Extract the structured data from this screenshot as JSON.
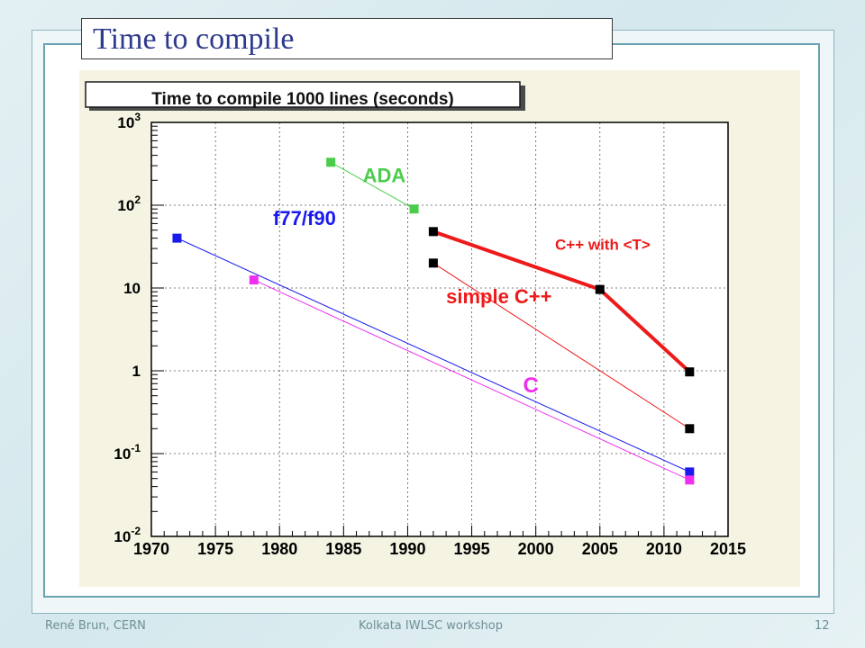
{
  "slide": {
    "title": "Time to compile"
  },
  "footer": {
    "author": "René Brun, CERN",
    "event": "Kolkata IWLSC workshop",
    "page": "12"
  },
  "colors": {
    "canvas_bg": "#f5f3e2",
    "ada": "#4ccc4c",
    "fortran": "#1a1aee",
    "c": "#ee2fee",
    "cpp": "#ee1a1a",
    "marker_dark": "#000000"
  },
  "chart_data": {
    "type": "line",
    "title": "Time to compile 1000 lines (seconds)",
    "xlabel": "",
    "ylabel": "",
    "xlim": [
      1970,
      2015
    ],
    "ylim": [
      0.01,
      1000
    ],
    "yscale": "log",
    "grid": true,
    "x_ticks": [
      "1970",
      "1975",
      "1980",
      "1985",
      "1990",
      "1995",
      "2000",
      "2005",
      "2010",
      "2015"
    ],
    "y_ticks": [
      {
        "value": 1000,
        "base": "10",
        "exp": "3"
      },
      {
        "value": 100,
        "base": "10",
        "exp": "2"
      },
      {
        "value": 10,
        "base": "10",
        "exp": ""
      },
      {
        "value": 1,
        "base": "1",
        "exp": ""
      },
      {
        "value": 0.1,
        "base": "10",
        "exp": "-1"
      },
      {
        "value": 0.01,
        "base": "10",
        "exp": "-2"
      }
    ],
    "series": [
      {
        "name": "ADA",
        "color": "#4ccc4c",
        "line_color": "#4ccc4c",
        "marker_color": "#4ccc4c",
        "width": 1,
        "points": [
          [
            1984,
            330
          ],
          [
            1990.5,
            90
          ]
        ],
        "label_at": [
          1986.5,
          190
        ]
      },
      {
        "name": "f77/f90",
        "color": "#1a1aee",
        "line_color": "#1a1aee",
        "marker_color": "#1a1aee",
        "width": 1,
        "points": [
          [
            1972,
            40
          ],
          [
            2012,
            0.06
          ]
        ],
        "label_at": [
          1979.5,
          58
        ]
      },
      {
        "name": "C",
        "color": "#ee2fee",
        "line_color": "#ee2fee",
        "marker_color": "#ee2fee",
        "width": 1,
        "points": [
          [
            1978,
            12.5
          ],
          [
            2012,
            0.048
          ]
        ],
        "label_at": [
          1999,
          0.55
        ]
      },
      {
        "name": "simple C++",
        "color": "#ee1a1a",
        "line_color": "#ee1a1a",
        "marker_color": "#000000",
        "width": 1,
        "points": [
          [
            1992,
            20
          ],
          [
            2012,
            0.2
          ]
        ],
        "label_at": [
          1993,
          6.5
        ]
      },
      {
        "name": "C++ with <T>",
        "color": "#ee1a1a",
        "line_color": "#ee1a1a",
        "marker_color": "#000000",
        "width": 4,
        "points": [
          [
            1992,
            48
          ],
          [
            2005,
            9.6
          ],
          [
            2012,
            0.97
          ]
        ],
        "label_at": [
          2001.5,
          29
        ]
      }
    ]
  }
}
